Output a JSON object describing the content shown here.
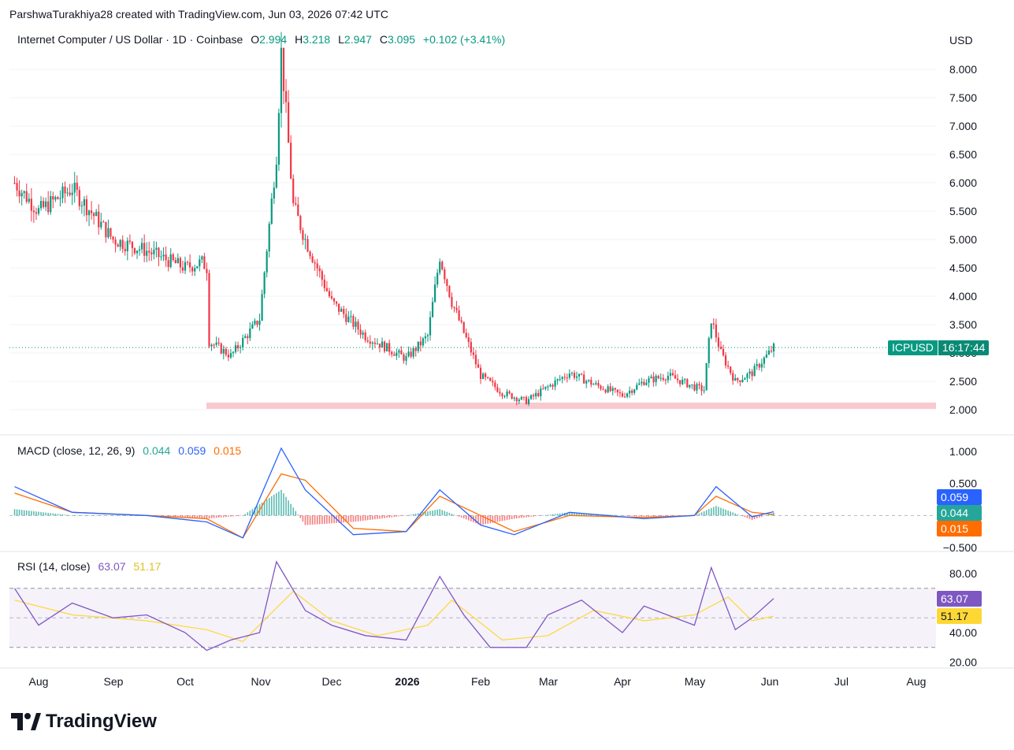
{
  "header": {
    "attribution": "ParshwaTurakhiya28 created with TradingView.com, Jun 03, 2026 07:42 UTC"
  },
  "legend": {
    "symbol": "Internet Computer / US Dollar · 1D · Coinbase",
    "o_label": "O",
    "o_val": "2.994",
    "h_label": "H",
    "h_val": "3.218",
    "l_label": "L",
    "l_val": "2.947",
    "c_label": "C",
    "c_val": "3.095",
    "change": "+0.102 (+3.41%)"
  },
  "price_scale": {
    "currency": "USD",
    "ticks": [
      "8.000",
      "7.500",
      "7.000",
      "6.500",
      "6.000",
      "5.500",
      "5.000",
      "4.500",
      "4.000",
      "3.500",
      "3.000",
      "2.500",
      "2.000"
    ]
  },
  "price_tag": {
    "symbol": "ICPUSD",
    "countdown": "16:17:44"
  },
  "macd": {
    "label": "MACD (close, 12, 26, 9)",
    "hist_val": "0.044",
    "macd_val": "0.059",
    "signal_val": "0.015",
    "ticks": [
      "1.000",
      "0.500",
      "−0.500"
    ],
    "tag_macd": "0.059",
    "tag_hist": "0.044",
    "tag_signal": "0.015"
  },
  "rsi": {
    "label": "RSI (14, close)",
    "rsi_val": "63.07",
    "ma_val": "51.17",
    "ticks": [
      "80.00",
      "40.00",
      "20.00"
    ],
    "tag_rsi": "63.07",
    "tag_ma": "51.17"
  },
  "time_axis": [
    "Aug",
    "Sep",
    "Oct",
    "Nov",
    "Dec",
    "2026",
    "Feb",
    "Mar",
    "Apr",
    "May",
    "Jun",
    "Jul",
    "Aug"
  ],
  "brand": "TradingView",
  "colors": {
    "up": "#089981",
    "down": "#f23645",
    "macd": "#2962ff",
    "signal": "#ff6d00",
    "rsi": "#7e57c2",
    "rsi_ma": "#fdd835",
    "support": "#f8c9cf"
  },
  "chart_data": [
    {
      "type": "line",
      "title": "Internet Computer / US Dollar · 1D · Coinbase",
      "ylabel": "USD",
      "ylim": [
        1.75,
        8.6
      ],
      "support_level": 2.07,
      "last_close": 3.095,
      "x": [
        "Jul 22",
        "Aug 1",
        "Aug 15",
        "Sep 1",
        "Sep 15",
        "Oct 1",
        "Oct 8",
        "Oct 10",
        "Oct 11",
        "Oct 20",
        "Nov 1",
        "Nov 8",
        "Nov 10",
        "Nov 15",
        "Nov 20",
        "Dec 1",
        "Dec 15",
        "Jan 1",
        "Jan 10",
        "Jan 15",
        "Jan 20",
        "Feb 1",
        "Feb 10",
        "Feb 20",
        "Mar 1",
        "Mar 10",
        "Mar 20",
        "Apr 1",
        "Apr 10",
        "Apr 20",
        "May 1",
        "May 5",
        "May 8",
        "May 12",
        "May 18",
        "May 25",
        "Jun 3"
      ],
      "y": [
        6.0,
        5.5,
        5.9,
        5.0,
        4.8,
        4.5,
        4.6,
        4.5,
        3.2,
        2.95,
        3.6,
        6.5,
        8.3,
        5.6,
        5.0,
        3.9,
        3.3,
        2.9,
        3.3,
        4.7,
        3.9,
        2.6,
        2.3,
        2.15,
        2.4,
        2.65,
        2.45,
        2.25,
        2.5,
        2.6,
        2.4,
        2.35,
        3.6,
        3.0,
        2.5,
        2.65,
        3.095
      ],
      "category_axis": [
        "Aug",
        "Sep",
        "Oct",
        "Nov",
        "Dec",
        "2026",
        "Feb",
        "Mar",
        "Apr",
        "May",
        "Jun",
        "Jul",
        "Aug"
      ]
    },
    {
      "type": "line",
      "title": "MACD (close, 12, 26, 9)",
      "ylim": [
        -0.55,
        1.15
      ],
      "series": [
        {
          "name": "MACD",
          "x": [
            "Jul 22",
            "Aug 15",
            "Sep 15",
            "Oct 10",
            "Oct 25",
            "Nov 10",
            "Nov 20",
            "Dec 10",
            "Jan 1",
            "Jan 15",
            "Feb 1",
            "Feb 15",
            "Mar 10",
            "Apr 10",
            "May 1",
            "May 10",
            "May 25",
            "Jun 3"
          ],
          "values": [
            0.45,
            0.05,
            0.0,
            -0.1,
            -0.35,
            1.05,
            0.4,
            -0.3,
            -0.25,
            0.4,
            -0.15,
            -0.3,
            0.05,
            -0.05,
            0.0,
            0.45,
            -0.02,
            0.059
          ]
        },
        {
          "name": "Signal",
          "x": [
            "Jul 22",
            "Aug 15",
            "Sep 15",
            "Oct 10",
            "Oct 25",
            "Nov 10",
            "Nov 20",
            "Dec 10",
            "Jan 1",
            "Jan 15",
            "Feb 1",
            "Feb 15",
            "Mar 10",
            "Apr 10",
            "May 1",
            "May 10",
            "May 25",
            "Jun 3"
          ],
          "values": [
            0.35,
            0.05,
            0.0,
            -0.05,
            -0.35,
            0.65,
            0.55,
            -0.2,
            -0.25,
            0.3,
            0.0,
            -0.25,
            0.0,
            -0.03,
            0.0,
            0.3,
            0.05,
            0.015
          ]
        }
      ],
      "last_histogram": 0.044
    },
    {
      "type": "line",
      "title": "RSI (14, close)",
      "ylim": [
        15,
        92
      ],
      "bands": [
        30,
        50,
        70
      ],
      "series": [
        {
          "name": "RSI",
          "x": [
            "Jul 22",
            "Aug 1",
            "Aug 15",
            "Sep 1",
            "Sep 15",
            "Oct 1",
            "Oct 10",
            "Oct 20",
            "Nov 1",
            "Nov 8",
            "Nov 20",
            "Dec 1",
            "Dec 15",
            "Jan 1",
            "Jan 15",
            "Jan 25",
            "Feb 5",
            "Feb 20",
            "Mar 1",
            "Mar 15",
            "Apr 1",
            "Apr 10",
            "May 1",
            "May 8",
            "May 18",
            "May 25",
            "Jun 3"
          ],
          "values": [
            70,
            45,
            60,
            50,
            52,
            40,
            28,
            35,
            40,
            88,
            55,
            45,
            38,
            35,
            78,
            52,
            30,
            30,
            52,
            62,
            40,
            58,
            45,
            84,
            42,
            50,
            63.07
          ]
        },
        {
          "name": "RSI MA",
          "x": [
            "Jul 22",
            "Aug 15",
            "Sep 15",
            "Oct 10",
            "Oct 25",
            "Nov 15",
            "Dec 1",
            "Dec 20",
            "Jan 10",
            "Jan 20",
            "Feb 10",
            "Mar 1",
            "Mar 20",
            "Apr 10",
            "May 1",
            "May 15",
            "May 25",
            "Jun 3"
          ],
          "values": [
            62,
            52,
            48,
            42,
            34,
            68,
            48,
            38,
            45,
            62,
            35,
            38,
            55,
            48,
            52,
            64,
            48,
            51.17
          ]
        }
      ]
    }
  ]
}
